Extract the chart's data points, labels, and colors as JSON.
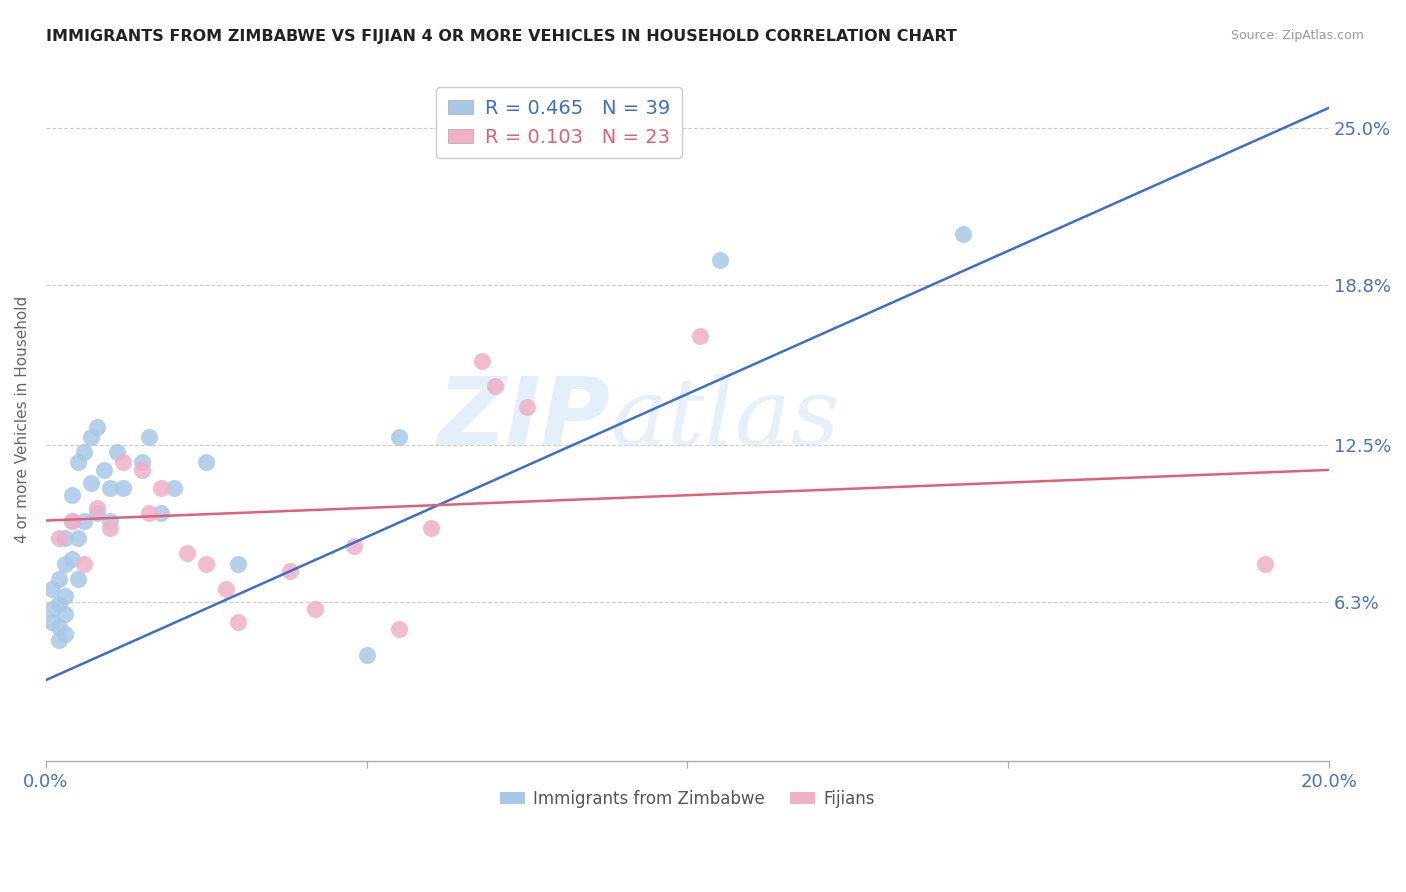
{
  "title": "IMMIGRANTS FROM ZIMBABWE VS FIJIAN 4 OR MORE VEHICLES IN HOUSEHOLD CORRELATION CHART",
  "source": "Source: ZipAtlas.com",
  "ylabel": "4 or more Vehicles in Household",
  "xlim": [
    0.0,
    0.2
  ],
  "ylim": [
    0.0,
    0.27
  ],
  "ytick_values": [
    0.063,
    0.125,
    0.188,
    0.25
  ],
  "ytick_labels": [
    "6.3%",
    "12.5%",
    "18.8%",
    "25.0%"
  ],
  "xtick_values": [
    0.0,
    0.05,
    0.1,
    0.15,
    0.2
  ],
  "xtick_labels": [
    "0.0%",
    "",
    "",
    "",
    "20.0%"
  ],
  "blue_R": 0.465,
  "blue_N": 39,
  "pink_R": 0.103,
  "pink_N": 23,
  "legend_label1": "Immigrants from Zimbabwe",
  "legend_label2": "Fijians",
  "blue_scatter_color": "#a8c8e8",
  "pink_scatter_color": "#f0b0c8",
  "blue_line_color": "#3d6ec9",
  "pink_line_color": "#e0607a",
  "blue_line_x0": 0.0,
  "blue_line_y0": 0.032,
  "blue_line_x1": 0.2,
  "blue_line_y1": 0.258,
  "pink_line_x0": 0.0,
  "pink_line_y0": 0.095,
  "pink_line_x1": 0.2,
  "pink_line_y1": 0.115,
  "blue_scatter_x": [
    0.001,
    0.001,
    0.001,
    0.002,
    0.002,
    0.002,
    0.002,
    0.003,
    0.003,
    0.003,
    0.003,
    0.003,
    0.004,
    0.004,
    0.004,
    0.005,
    0.005,
    0.005,
    0.006,
    0.006,
    0.007,
    0.007,
    0.008,
    0.008,
    0.009,
    0.01,
    0.01,
    0.011,
    0.012,
    0.015,
    0.016,
    0.018,
    0.02,
    0.025,
    0.03,
    0.05,
    0.055,
    0.105,
    0.143
  ],
  "blue_scatter_y": [
    0.055,
    0.06,
    0.068,
    0.048,
    0.053,
    0.062,
    0.072,
    0.05,
    0.058,
    0.065,
    0.078,
    0.088,
    0.08,
    0.095,
    0.105,
    0.072,
    0.088,
    0.118,
    0.095,
    0.122,
    0.11,
    0.128,
    0.098,
    0.132,
    0.115,
    0.095,
    0.108,
    0.122,
    0.108,
    0.118,
    0.128,
    0.098,
    0.108,
    0.118,
    0.078,
    0.042,
    0.128,
    0.198,
    0.208
  ],
  "pink_scatter_x": [
    0.002,
    0.004,
    0.006,
    0.008,
    0.01,
    0.012,
    0.015,
    0.016,
    0.018,
    0.022,
    0.025,
    0.028,
    0.03,
    0.038,
    0.042,
    0.048,
    0.055,
    0.06,
    0.068,
    0.07,
    0.075,
    0.102,
    0.19
  ],
  "pink_scatter_y": [
    0.088,
    0.095,
    0.078,
    0.1,
    0.092,
    0.118,
    0.115,
    0.098,
    0.108,
    0.082,
    0.078,
    0.068,
    0.055,
    0.075,
    0.06,
    0.085,
    0.052,
    0.092,
    0.158,
    0.148,
    0.14,
    0.168,
    0.078
  ]
}
